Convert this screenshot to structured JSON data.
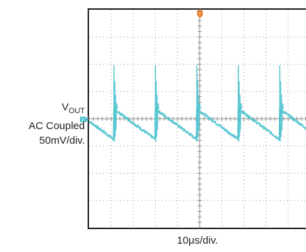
{
  "chart_data": {
    "type": "line",
    "title": "",
    "channel": {
      "marker": "2",
      "signal_main": "V",
      "signal_sub": "OUT",
      "coupling": "AC Coupled",
      "scale": "50mV/div."
    },
    "trigger_marker": "T",
    "timebase": "10μs/div.",
    "grid": true,
    "divisions": {
      "x": 10,
      "y": 8
    },
    "xlim": [
      0,
      80
    ],
    "ylim": [
      -200,
      200
    ],
    "x_unit": "μs",
    "y_unit": "mV",
    "series": [
      {
        "color": "#4fc3cf",
        "period_us": 15,
        "first_spike_us": 9,
        "spike_peak_mV": 98,
        "spike_trough_mV": -42,
        "ramp_start_mV": 18,
        "ramp_end_mV": -38,
        "phases_us": [
          9,
          24,
          39,
          54,
          69
        ]
      }
    ]
  },
  "colors": {
    "frame": "#1a1a1a",
    "grid": "#8a8a8a",
    "trace": "#4fc3cf",
    "trigger": "#e8741e"
  }
}
